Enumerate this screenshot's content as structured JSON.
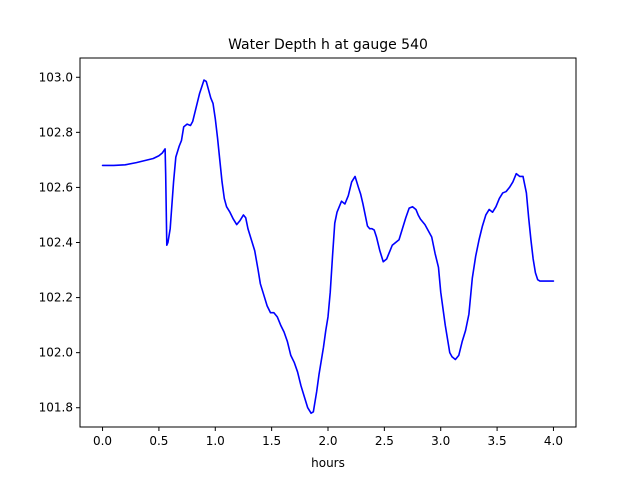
{
  "chart_data": {
    "type": "line",
    "title": "Water Depth h at gauge 540",
    "xlabel": "hours",
    "ylabel": "",
    "xlim": [
      -0.2,
      4.2
    ],
    "ylim": [
      101.73,
      103.07
    ],
    "xticks": [
      0.0,
      0.5,
      1.0,
      1.5,
      2.0,
      2.5,
      3.0,
      3.5,
      4.0
    ],
    "xtick_labels": [
      "0.0",
      "0.5",
      "1.0",
      "1.5",
      "2.0",
      "2.5",
      "3.0",
      "3.5",
      "4.0"
    ],
    "yticks": [
      101.8,
      102.0,
      102.2,
      102.4,
      102.6,
      102.8,
      103.0
    ],
    "ytick_labels": [
      "101.8",
      "102.0",
      "102.2",
      "102.4",
      "102.6",
      "102.8",
      "103.0"
    ],
    "grid": false,
    "legend": "none",
    "series": [
      {
        "color": "#0000ff",
        "x": [
          0.0,
          0.1,
          0.2,
          0.3,
          0.4,
          0.45,
          0.5,
          0.53,
          0.555,
          0.56,
          0.57,
          0.58,
          0.6,
          0.63,
          0.65,
          0.68,
          0.7,
          0.72,
          0.75,
          0.78,
          0.8,
          0.83,
          0.86,
          0.88,
          0.9,
          0.92,
          0.94,
          0.96,
          0.98,
          1.0,
          1.02,
          1.04,
          1.06,
          1.08,
          1.1,
          1.13,
          1.16,
          1.19,
          1.22,
          1.25,
          1.27,
          1.29,
          1.32,
          1.35,
          1.38,
          1.4,
          1.43,
          1.46,
          1.49,
          1.52,
          1.55,
          1.58,
          1.61,
          1.64,
          1.67,
          1.7,
          1.73,
          1.76,
          1.79,
          1.82,
          1.85,
          1.87,
          1.88,
          1.9,
          1.92,
          1.94,
          1.96,
          1.98,
          2.0,
          2.02,
          2.04,
          2.06,
          2.08,
          2.1,
          2.12,
          2.15,
          2.18,
          2.21,
          2.24,
          2.27,
          2.29,
          2.31,
          2.33,
          2.35,
          2.37,
          2.39,
          2.41,
          2.43,
          2.46,
          2.49,
          2.52,
          2.55,
          2.57,
          2.6,
          2.63,
          2.66,
          2.69,
          2.72,
          2.75,
          2.78,
          2.8,
          2.82,
          2.84,
          2.86,
          2.88,
          2.9,
          2.92,
          2.95,
          2.98,
          3.0,
          3.02,
          3.04,
          3.06,
          3.08,
          3.1,
          3.13,
          3.16,
          3.19,
          3.22,
          3.25,
          3.28,
          3.31,
          3.34,
          3.37,
          3.4,
          3.43,
          3.46,
          3.49,
          3.52,
          3.55,
          3.58,
          3.61,
          3.64,
          3.67,
          3.7,
          3.73,
          3.76,
          3.78,
          3.8,
          3.82,
          3.84,
          3.86,
          3.88,
          3.9,
          3.92,
          3.94,
          3.96,
          3.98,
          4.0
        ],
        "y": [
          102.68,
          102.68,
          102.682,
          102.69,
          102.7,
          102.705,
          102.715,
          102.725,
          102.74,
          102.65,
          102.39,
          102.4,
          102.45,
          102.62,
          102.71,
          102.75,
          102.77,
          102.82,
          102.83,
          102.825,
          102.84,
          102.89,
          102.94,
          102.965,
          102.99,
          102.985,
          102.955,
          102.925,
          102.905,
          102.85,
          102.78,
          102.7,
          102.62,
          102.56,
          102.53,
          102.51,
          102.485,
          102.465,
          102.48,
          102.5,
          102.49,
          102.45,
          102.41,
          102.37,
          102.3,
          102.25,
          102.21,
          102.17,
          102.145,
          102.145,
          102.13,
          102.1,
          102.075,
          102.04,
          101.99,
          101.965,
          101.93,
          101.88,
          101.84,
          101.8,
          101.78,
          101.785,
          101.81,
          101.86,
          101.92,
          101.97,
          102.02,
          102.08,
          102.13,
          102.22,
          102.35,
          102.47,
          102.51,
          102.53,
          102.55,
          102.54,
          102.57,
          102.62,
          102.64,
          102.6,
          102.575,
          102.54,
          102.5,
          102.46,
          102.45,
          102.45,
          102.445,
          102.42,
          102.37,
          102.33,
          102.34,
          102.37,
          102.39,
          102.4,
          102.41,
          102.45,
          102.49,
          102.525,
          102.53,
          102.52,
          102.5,
          102.485,
          102.475,
          102.465,
          102.45,
          102.435,
          102.42,
          102.36,
          102.31,
          102.22,
          102.16,
          102.1,
          102.05,
          102.0,
          101.985,
          101.975,
          101.99,
          102.04,
          102.08,
          102.14,
          102.27,
          102.35,
          102.41,
          102.46,
          102.5,
          102.52,
          102.51,
          102.53,
          102.56,
          102.58,
          102.585,
          102.6,
          102.62,
          102.65,
          102.64,
          102.64,
          102.58,
          102.49,
          102.41,
          102.34,
          102.29,
          102.265,
          102.26,
          102.26,
          102.26,
          102.26,
          102.26,
          102.26,
          102.26
        ]
      }
    ]
  }
}
